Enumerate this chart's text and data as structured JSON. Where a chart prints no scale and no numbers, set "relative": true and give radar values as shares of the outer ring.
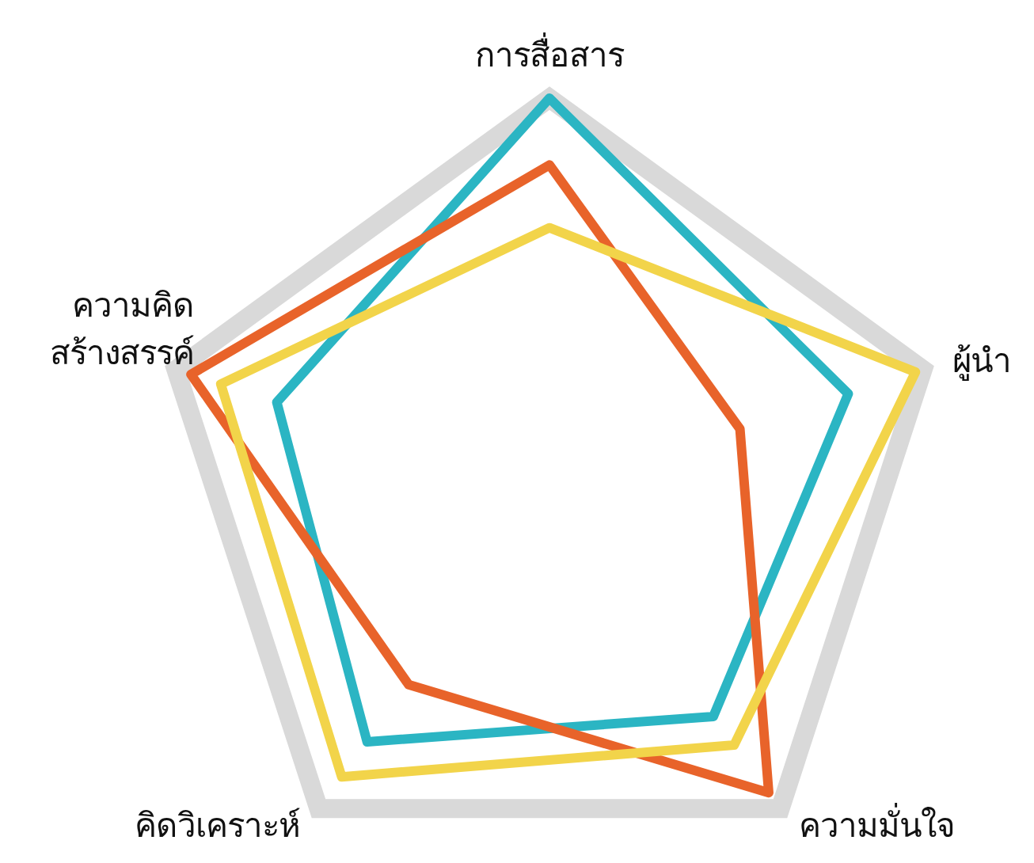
{
  "chart_data": {
    "type": "radar",
    "relative": true,
    "grid": true,
    "line_style": "solid",
    "marker": "none",
    "categories": [
      "การสื่อสาร",
      "ผู้นำ",
      "ความมั่นใจ",
      "คิดวิเคราะห์",
      "ความคิด\nสร้างสรรค์"
    ],
    "series": [
      {
        "color": "#2bb5c3",
        "values": [
          1.0,
          0.8,
          0.71,
          0.79,
          0.73
        ]
      },
      {
        "color": "#e8632a",
        "values": [
          0.83,
          0.51,
          0.95,
          0.61,
          0.96
        ]
      },
      {
        "color": "#f2d44a",
        "values": [
          0.67,
          0.98,
          0.8,
          0.9,
          0.88
        ]
      }
    ]
  }
}
